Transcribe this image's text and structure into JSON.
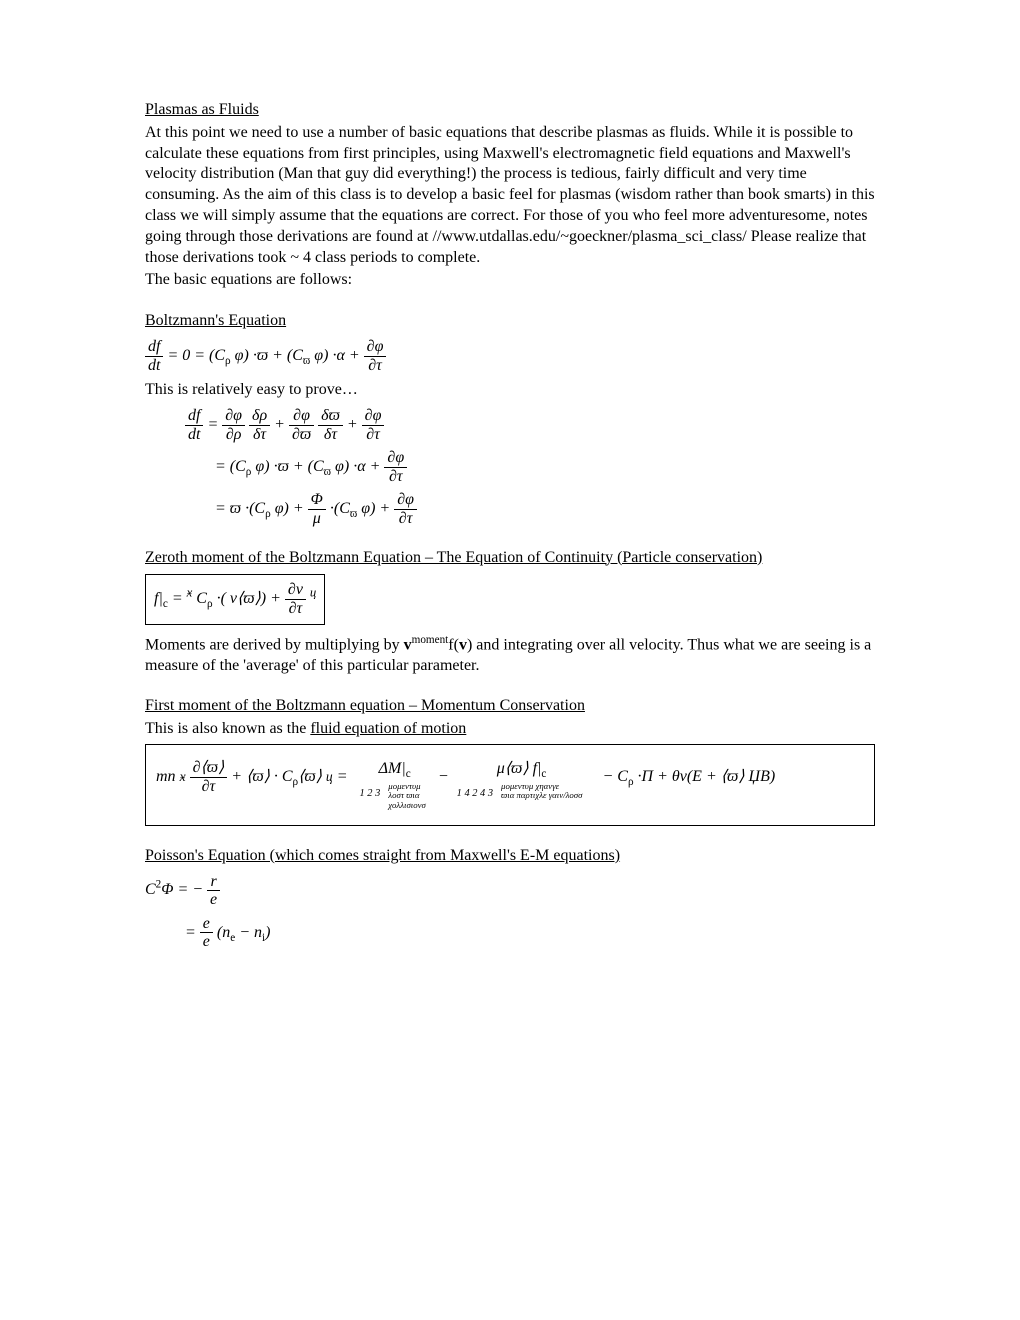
{
  "title": "Plasmas as Fluids",
  "intro": {
    "p1": "At this point we need to use a number of basic equations that describe plasmas as fluids. While it is possible to calculate these equations from first principles, using Maxwell's electromagnetic field equations and Maxwell's velocity distribution (Man that guy did everything!) the process is tedious, fairly difficult and very time consuming.  As the aim of this class is to develop a basic feel for plasmas (wisdom rather than book smarts) in this class we will simply assume that the equations are correct.  For those of you who feel more adventuresome, notes going through those derivations are found at //www.utdallas.edu/~goeckner/plasma_sci_class/  Please realize that those derivations took ~ 4 class periods to complete.",
    "p2": "The basic equations are follows:"
  },
  "boltzmann": {
    "heading": "Boltzmann's Equation",
    "eq1_lhs_num": "df",
    "eq1_lhs_den": "dt",
    "eq1_rhs": "= 0 = (С<sub>ρ</sub> φ) ·ϖ + (С<sub>ϖ</sub> φ) ·α +",
    "eq1_tail_num": "∂φ",
    "eq1_tail_den": "∂τ",
    "prove_text": "This is relatively easy to prove…",
    "line1_a_num": "df",
    "line1_a_den": "dt",
    "line1_eq": "=",
    "line1_b_num": "∂φ",
    "line1_b_den": "∂ρ",
    "line1_c_num": "δρ",
    "line1_c_den": "δτ",
    "line1_plus1": "+",
    "line1_d_num": "∂φ",
    "line1_d_den": "∂ϖ",
    "line1_e_num": "δϖ",
    "line1_e_den": "δτ",
    "line1_plus2": "+",
    "line1_f_num": "∂φ",
    "line1_f_den": "∂τ",
    "line2_pre": "= (С<sub>ρ</sub> φ) ·ϖ + (С<sub>ϖ</sub> φ) ·α +",
    "line2_tail_num": "∂φ",
    "line2_tail_den": "∂τ",
    "line3_pre": "= ϖ ·(С<sub>ρ</sub> φ) +",
    "line3_mid_num": "Φ",
    "line3_mid_den": "μ",
    "line3_post": "·(С<sub>ϖ</sub> φ) +",
    "line3_tail_num": "∂φ",
    "line3_tail_den": "∂τ"
  },
  "zeroth": {
    "heading": "Zeroth moment of the Boltzmann Equation – The Equation of Continuity (Particle conservation)",
    "eq_lhs": "f|<sub>c</sub> =",
    "eq_brace_l": "ӿ",
    "eq_mid1": "С<sub>ρ</sub> ·( ν⟨ϖ⟩) +",
    "eq_frac_num": "∂ν",
    "eq_frac_den": "∂τ",
    "eq_brace_r": "ц",
    "moments_text_1": "Moments are derived by multiplying by ",
    "moments_v": "v",
    "moments_sup": "moment",
    "moments_fv": "f(",
    "moments_v2": "v",
    "moments_close": ")",
    "moments_text_2": " and integrating over all velocity.  Thus what we are seeing is a measure of the 'average' of this particular parameter."
  },
  "first": {
    "heading": "First moment of the Boltzmann equation – Momentum Conservation",
    "sub": "This is also known as the ",
    "sub_u": "fluid equation of motion",
    "eq_lhs_pre": "mn",
    "eq_brace": "ӿ",
    "eq_frac1_num": "∂⟨ϖ⟩",
    "eq_frac1_den": "∂τ",
    "eq_mid1": "+ ⟨ϖ⟩ · С<sub>ρ</sub>⟨ϖ⟩",
    "eq_brace_close": "ц",
    "eq_equals": "=",
    "term1_top": "ΔM|<sub>c</sub>",
    "term1_sub": "1 2 3",
    "term1_label_l1": "μομεντυμ",
    "term1_label_l2": "λοστ ϖια",
    "term1_label_l3": "χολλισιονσ",
    "minus1": "−",
    "term2_top": "μ⟨ϖ⟩ f|<sub>c</sub>",
    "term2_sub": "1 4 2 4 3",
    "term2_label_l1": "μομεντυμ  χηανγε",
    "term2_label_l2": "ϖια παρτιχλε γαιν/λοσσ",
    "rhs_tail": "− С<sub>ρ</sub> ·Π + θν(E + ⟨ϖ⟩ ЏB)"
  },
  "poisson": {
    "heading": "Poisson's Equation (which comes straight from Maxwell's E-M equations)",
    "line1_lhs": "С<sup>2</sup>Φ = −",
    "line1_num": "r",
    "line1_den": "e",
    "line2_pre": "=",
    "line2_num": "e",
    "line2_den": "e",
    "line2_post": "(n<sub>e</sub> − n<sub>i</sub>)"
  }
}
